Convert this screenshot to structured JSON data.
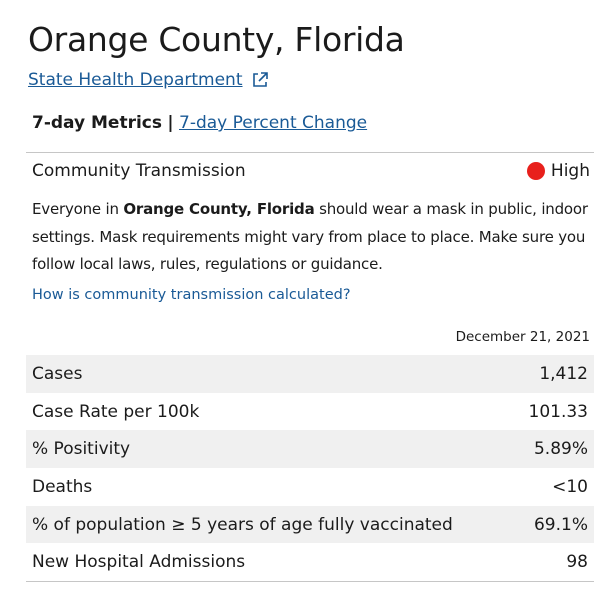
{
  "header": {
    "title": "Orange County, Florida",
    "link": "State Health Department"
  },
  "tabs": {
    "active": "7-day Metrics",
    "separator": "|",
    "other": "7-day Percent Change"
  },
  "transmission": {
    "label": "Community Transmission",
    "level": "High",
    "message": {
      "before": "Everyone in ",
      "bold": "Orange County, Florida",
      "after": " should wear a mask in public, indoor settings. Mask requirements might vary from place to place. Make sure you follow local laws, rules, regulations or guidance."
    },
    "link": "How is community transmission calculated?"
  },
  "table": {
    "date": "December 21, 2021",
    "rows": [
      [
        "Cases",
        "1,412"
      ],
      [
        "Case Rate per 100k",
        "101.33"
      ],
      [
        "% Positivity",
        "5.89%"
      ],
      [
        "Deaths",
        "<10"
      ],
      [
        "% of population ≥ 5 years of age fully vaccinated",
        "69.1%"
      ],
      [
        "New Hospital Admissions",
        "98"
      ]
    ]
  }
}
